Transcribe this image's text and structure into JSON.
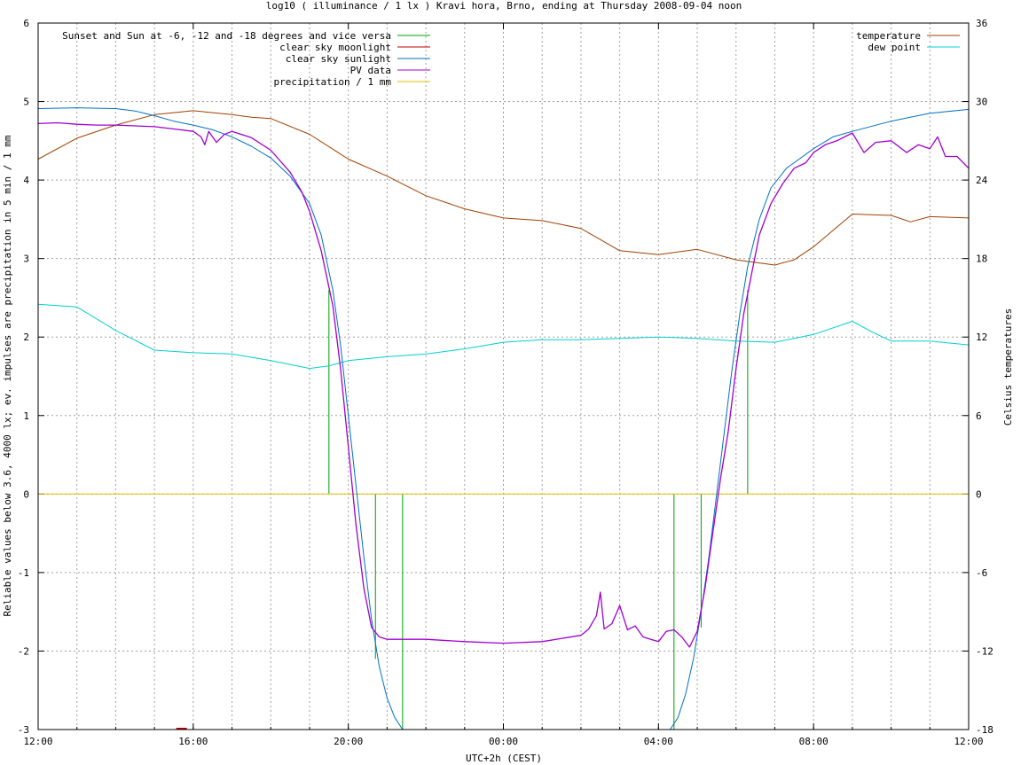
{
  "chart_data": {
    "type": "line",
    "title": "log10 ( illuminance / 1 lx ) Kravi hora, Brno, ending at Thursday 2008-09-04 noon",
    "xlabel": "UTC+2h (CEST)",
    "ylabel": "Reliable values below 3.6, 4000 lx; ev. impulses are precipitation in 5 min / 1 mm",
    "y2label": "Celsius temperatures",
    "xlim": [
      0,
      24
    ],
    "ylim": [
      -3,
      6
    ],
    "y2lim": [
      -18,
      36
    ],
    "xticks": [
      {
        "v": 0,
        "label": "12:00"
      },
      {
        "v": 4,
        "label": "16:00"
      },
      {
        "v": 8,
        "label": "20:00"
      },
      {
        "v": 12,
        "label": "00:00"
      },
      {
        "v": 16,
        "label": "04:00"
      },
      {
        "v": 20,
        "label": "08:00"
      },
      {
        "v": 24,
        "label": "12:00"
      }
    ],
    "yticks": [
      {
        "v": -3,
        "label": "-3"
      },
      {
        "v": -2,
        "label": "-2"
      },
      {
        "v": -1,
        "label": "-1"
      },
      {
        "v": 0,
        "label": "0"
      },
      {
        "v": 1,
        "label": "1"
      },
      {
        "v": 2,
        "label": "2"
      },
      {
        "v": 3,
        "label": "3"
      },
      {
        "v": 4,
        "label": "4"
      },
      {
        "v": 5,
        "label": "5"
      },
      {
        "v": 6,
        "label": "6"
      }
    ],
    "y2ticks": [
      {
        "v": -18,
        "label": "-18"
      },
      {
        "v": -12,
        "label": "-12"
      },
      {
        "v": -6,
        "label": "-6"
      },
      {
        "v": 0,
        "label": "0"
      },
      {
        "v": 6,
        "label": "6"
      },
      {
        "v": 12,
        "label": "12"
      },
      {
        "v": 18,
        "label": "18"
      },
      {
        "v": 24,
        "label": "24"
      },
      {
        "v": 30,
        "label": "30"
      },
      {
        "v": 36,
        "label": "36"
      }
    ],
    "grid": true,
    "legend_left": [
      {
        "name": "Sunset and Sun at -6, -12 and -18 degrees and vice versa",
        "color": "#00a000"
      },
      {
        "name": "clear sky moonlight",
        "color": "#c00000"
      },
      {
        "name": "clear sky sunlight",
        "color": "#0070c0"
      },
      {
        "name": "PV data",
        "color": "#a000d0"
      },
      {
        "name": "precipitation / 1 mm",
        "color": "#e0c000"
      }
    ],
    "legend_right": [
      {
        "name": "temperature",
        "color": "#a04000"
      },
      {
        "name": "dew point",
        "color": "#00d0d0"
      }
    ],
    "series": [
      {
        "key": "sunlight",
        "color": "#0070c0",
        "axis": "y1",
        "points": [
          [
            0,
            4.91
          ],
          [
            1,
            4.92
          ],
          [
            2,
            4.91
          ],
          [
            2.5,
            4.88
          ],
          [
            3,
            4.82
          ],
          [
            3.5,
            4.75
          ],
          [
            4,
            4.7
          ],
          [
            4.5,
            4.64
          ],
          [
            5,
            4.55
          ],
          [
            5.5,
            4.43
          ],
          [
            6,
            4.28
          ],
          [
            6.5,
            4.05
          ],
          [
            7,
            3.7
          ],
          [
            7.3,
            3.3
          ],
          [
            7.6,
            2.6
          ],
          [
            7.8,
            1.9
          ],
          [
            8,
            1.0
          ],
          [
            8.2,
            0.1
          ],
          [
            8.4,
            -0.8
          ],
          [
            8.6,
            -1.6
          ],
          [
            8.8,
            -2.2
          ],
          [
            9.0,
            -2.6
          ],
          [
            9.2,
            -2.85
          ],
          [
            9.4,
            -3.0
          ],
          [
            16.3,
            -3.0
          ],
          [
            16.5,
            -2.85
          ],
          [
            16.7,
            -2.55
          ],
          [
            16.9,
            -2.1
          ],
          [
            17.1,
            -1.5
          ],
          [
            17.3,
            -0.8
          ],
          [
            17.5,
            0.0
          ],
          [
            17.7,
            0.8
          ],
          [
            17.9,
            1.6
          ],
          [
            18.1,
            2.3
          ],
          [
            18.3,
            2.9
          ],
          [
            18.6,
            3.5
          ],
          [
            18.9,
            3.9
          ],
          [
            19.3,
            4.15
          ],
          [
            20,
            4.4
          ],
          [
            20.5,
            4.55
          ],
          [
            21,
            4.62
          ],
          [
            22,
            4.75
          ],
          [
            23,
            4.85
          ],
          [
            24,
            4.9
          ]
        ]
      },
      {
        "key": "pv",
        "color": "#a000d0",
        "axis": "y1",
        "points": [
          [
            0,
            4.72
          ],
          [
            0.5,
            4.73
          ],
          [
            1,
            4.71
          ],
          [
            1.5,
            4.7
          ],
          [
            2,
            4.7
          ],
          [
            2.5,
            4.69
          ],
          [
            3,
            4.68
          ],
          [
            3.5,
            4.65
          ],
          [
            4,
            4.62
          ],
          [
            4.2,
            4.55
          ],
          [
            4.3,
            4.45
          ],
          [
            4.4,
            4.62
          ],
          [
            4.6,
            4.48
          ],
          [
            4.8,
            4.58
          ],
          [
            5,
            4.62
          ],
          [
            5.5,
            4.54
          ],
          [
            6,
            4.38
          ],
          [
            6.5,
            4.1
          ],
          [
            6.8,
            3.85
          ],
          [
            7.0,
            3.6
          ],
          [
            7.3,
            3.1
          ],
          [
            7.6,
            2.4
          ],
          [
            7.8,
            1.6
          ],
          [
            8.0,
            0.6
          ],
          [
            8.2,
            -0.4
          ],
          [
            8.4,
            -1.2
          ],
          [
            8.6,
            -1.7
          ],
          [
            8.8,
            -1.82
          ],
          [
            9,
            -1.85
          ],
          [
            10,
            -1.85
          ],
          [
            11,
            -1.88
          ],
          [
            12,
            -1.9
          ],
          [
            13,
            -1.88
          ],
          [
            14,
            -1.8
          ],
          [
            14.2,
            -1.72
          ],
          [
            14.4,
            -1.55
          ],
          [
            14.5,
            -1.25
          ],
          [
            14.6,
            -1.72
          ],
          [
            14.8,
            -1.65
          ],
          [
            15,
            -1.42
          ],
          [
            15.2,
            -1.73
          ],
          [
            15.4,
            -1.68
          ],
          [
            15.6,
            -1.82
          ],
          [
            15.8,
            -1.85
          ],
          [
            16,
            -1.88
          ],
          [
            16.2,
            -1.75
          ],
          [
            16.4,
            -1.73
          ],
          [
            16.6,
            -1.82
          ],
          [
            16.8,
            -1.95
          ],
          [
            17,
            -1.75
          ],
          [
            17.2,
            -1.2
          ],
          [
            17.4,
            -0.5
          ],
          [
            17.6,
            0.2
          ],
          [
            17.8,
            0.8
          ],
          [
            18,
            1.6
          ],
          [
            18.2,
            2.3
          ],
          [
            18.4,
            2.8
          ],
          [
            18.6,
            3.3
          ],
          [
            18.9,
            3.7
          ],
          [
            19.2,
            3.95
          ],
          [
            19.5,
            4.15
          ],
          [
            19.8,
            4.22
          ],
          [
            20,
            4.35
          ],
          [
            20.3,
            4.45
          ],
          [
            20.6,
            4.5
          ],
          [
            21,
            4.6
          ],
          [
            21.3,
            4.35
          ],
          [
            21.6,
            4.48
          ],
          [
            22,
            4.5
          ],
          [
            22.4,
            4.35
          ],
          [
            22.7,
            4.45
          ],
          [
            23,
            4.4
          ],
          [
            23.2,
            4.55
          ],
          [
            23.4,
            4.3
          ],
          [
            23.7,
            4.3
          ],
          [
            24,
            4.15
          ]
        ]
      },
      {
        "key": "temperature",
        "color": "#a04000",
        "axis": "y2",
        "points": [
          [
            0,
            25.6
          ],
          [
            1,
            27.2
          ],
          [
            2,
            28.2
          ],
          [
            3,
            29.0
          ],
          [
            4,
            29.3
          ],
          [
            5,
            29.0
          ],
          [
            5.5,
            28.8
          ],
          [
            6,
            28.7
          ],
          [
            7,
            27.5
          ],
          [
            8,
            25.6
          ],
          [
            9,
            24.3
          ],
          [
            10,
            22.8
          ],
          [
            11,
            21.8
          ],
          [
            12,
            21.1
          ],
          [
            13,
            20.9
          ],
          [
            14,
            20.3
          ],
          [
            15,
            18.6
          ],
          [
            16,
            18.3
          ],
          [
            17,
            18.7
          ],
          [
            18,
            17.9
          ],
          [
            19,
            17.5
          ],
          [
            19.5,
            17.9
          ],
          [
            20,
            18.9
          ],
          [
            21,
            21.4
          ],
          [
            22,
            21.3
          ],
          [
            22.5,
            20.8
          ],
          [
            23,
            21.2
          ],
          [
            24,
            21.1
          ]
        ]
      },
      {
        "key": "dewpoint",
        "color": "#00d0d0",
        "axis": "y2",
        "points": [
          [
            0,
            14.5
          ],
          [
            1,
            14.3
          ],
          [
            2,
            12.5
          ],
          [
            3,
            11.0
          ],
          [
            4,
            10.8
          ],
          [
            5,
            10.7
          ],
          [
            6,
            10.2
          ],
          [
            7,
            9.6
          ],
          [
            7.5,
            9.8
          ],
          [
            8,
            10.2
          ],
          [
            9,
            10.5
          ],
          [
            10,
            10.7
          ],
          [
            11,
            11.1
          ],
          [
            12,
            11.6
          ],
          [
            13,
            11.8
          ],
          [
            14,
            11.8
          ],
          [
            15,
            11.9
          ],
          [
            16,
            12.0
          ],
          [
            17,
            11.9
          ],
          [
            18,
            11.7
          ],
          [
            19,
            11.6
          ],
          [
            20,
            12.2
          ],
          [
            21,
            13.2
          ],
          [
            21.5,
            12.4
          ],
          [
            22,
            11.7
          ],
          [
            23,
            11.7
          ],
          [
            24,
            11.4
          ]
        ]
      },
      {
        "key": "precipitation",
        "color": "#e0c000",
        "axis": "y1",
        "points": [
          [
            0,
            0
          ],
          [
            24,
            0
          ]
        ]
      }
    ],
    "sun_markers": [
      {
        "x": 7.5,
        "y": 2.6
      },
      {
        "x": 8.7,
        "y": -2.1
      },
      {
        "x": 9.4,
        "y": -3.0
      },
      {
        "x": 16.4,
        "y": -3.0
      },
      {
        "x": 17.1,
        "y": -1.7
      },
      {
        "x": 18.3,
        "y": 2.6
      }
    ],
    "moon_marker": {
      "x": 3.7,
      "y": -3.0
    }
  }
}
